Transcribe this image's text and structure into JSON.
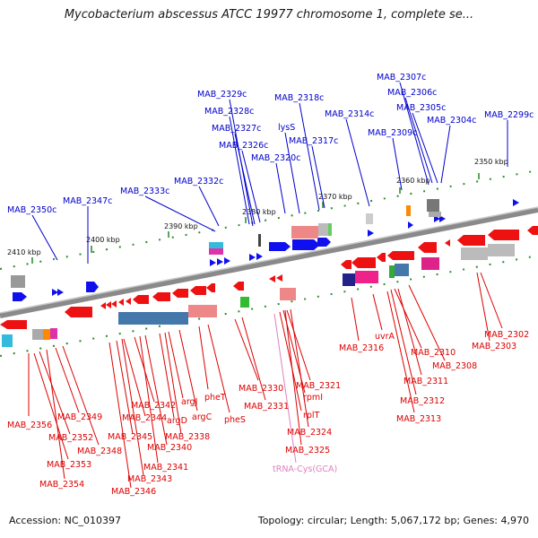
{
  "title": "Mycobacterium abscessus ATCC 19977 chromosome 1, complete se...",
  "accession_label": "Accession: NC_010397",
  "topology_label": "Topology: circular; Length: 5,067,172 bp; Genes: 4,970",
  "colors": {
    "forward_gene": "#1010ee",
    "reverse_gene": "#ee1111",
    "label_forward": "#0000cc",
    "label_reverse": "#dd0000",
    "label_trna": "#e080c0",
    "backbone": "#777777",
    "tick": "#228822"
  },
  "kbp_markers": [
    "2410 kbp",
    "2400 kbp",
    "2390 kbp",
    "2380 kbp",
    "2370 kbp",
    "2360 kbp",
    "2350 kbp"
  ],
  "forward_labels": [
    "MAB_2350c",
    "MAB_2347c",
    "MAB_2333c",
    "MAB_2332c",
    "MAB_2329c",
    "MAB_2328c",
    "MAB_2327c",
    "MAB_2326c",
    "MAB_2320c",
    "lysS",
    "MAB_2318c",
    "MAB_2317c",
    "MAB_2314c",
    "MAB_2309c",
    "MAB_2307c",
    "MAB_2306c",
    "MAB_2305c",
    "MAB_2304c",
    "MAB_2299c"
  ],
  "reverse_labels": [
    "MAB_2356",
    "MAB_2349",
    "MAB_2352",
    "MAB_2348",
    "MAB_2353",
    "MAB_2354",
    "MAB_2342",
    "MAB_2344",
    "MAB_2345",
    "MAB_2340",
    "MAB_2341",
    "MAB_2343",
    "MAB_2346",
    "argJ",
    "argD",
    "argC",
    "MAB_2338",
    "pheT",
    "pheS",
    "MAB_2330",
    "MAB_2331",
    "MAB_2321",
    "rpmI",
    "rplT",
    "MAB_2324",
    "MAB_2325",
    "MAB_2316",
    "uvrA",
    "MAB_2310",
    "MAB_2311",
    "MAB_2308",
    "MAB_2312",
    "MAB_2313",
    "MAB_2302",
    "MAB_2303"
  ],
  "trna_labels": [
    "tRNA-Cys(GCA)"
  ]
}
